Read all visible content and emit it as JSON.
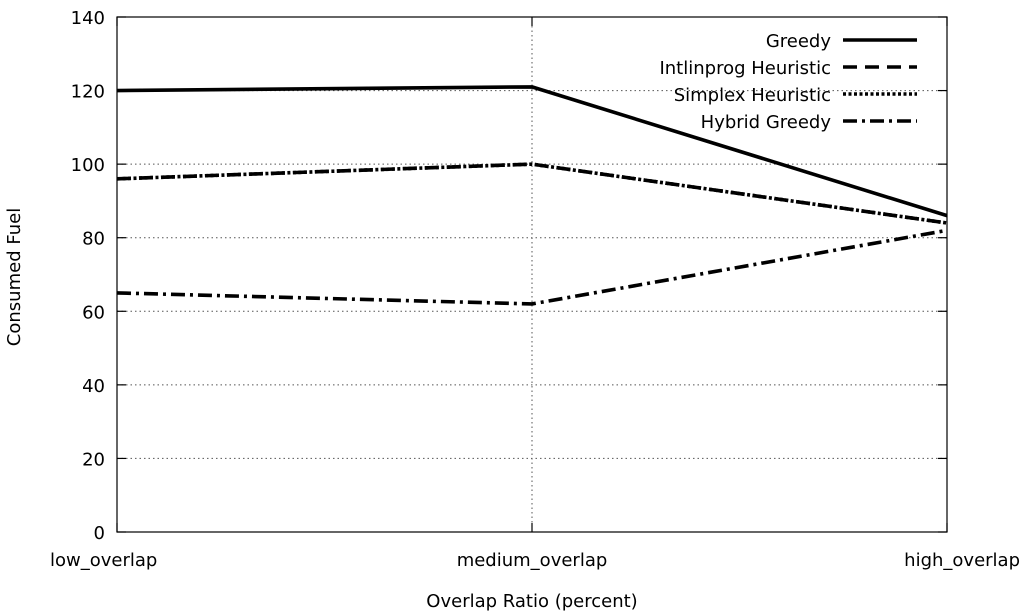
{
  "chart_data": {
    "type": "line",
    "title": "",
    "xlabel": "Overlap Ratio (percent)",
    "ylabel": "Consumed Fuel",
    "categories": [
      "low_overlap",
      "medium_overlap",
      "high_overlap"
    ],
    "ylim": [
      0,
      140
    ],
    "yticks": [
      0,
      20,
      40,
      60,
      80,
      100,
      120,
      140
    ],
    "grid": true,
    "legend_position": "top-right",
    "series": [
      {
        "name": "Greedy",
        "values": [
          120,
          121,
          86
        ],
        "dash": "solid",
        "color": "#000000"
      },
      {
        "name": "Intlinprog Heuristic",
        "values": [
          96,
          100,
          84
        ],
        "dash": "dashed",
        "color": "#000000"
      },
      {
        "name": "Simplex Heuristic",
        "values": [
          96,
          100,
          84
        ],
        "dash": "dotted",
        "color": "#000000"
      },
      {
        "name": "Hybrid Greedy",
        "values": [
          65,
          62,
          82
        ],
        "dash": "dash-dot",
        "color": "#000000"
      }
    ]
  }
}
